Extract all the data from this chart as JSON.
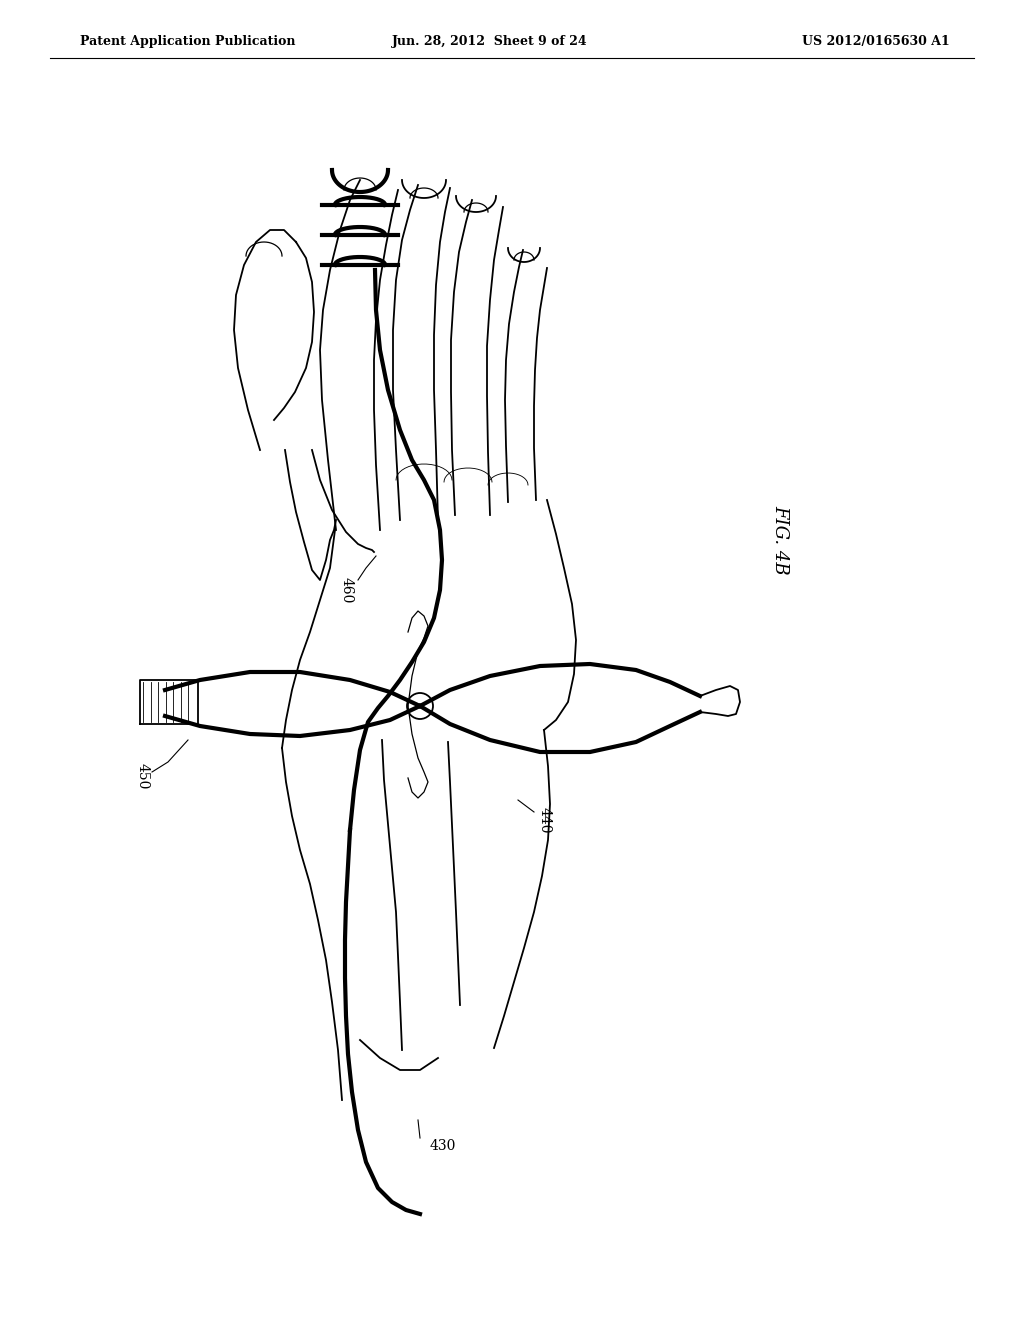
{
  "bg_color": "#ffffff",
  "header_left": "Patent Application Publication",
  "header_center": "Jun. 28, 2012  Sheet 9 of 24",
  "header_right": "US 2012/0165630 A1",
  "fig_label": "FIG. 4B",
  "lw_body": 1.3,
  "lw_thick": 3.0,
  "lw_thin": 0.9
}
